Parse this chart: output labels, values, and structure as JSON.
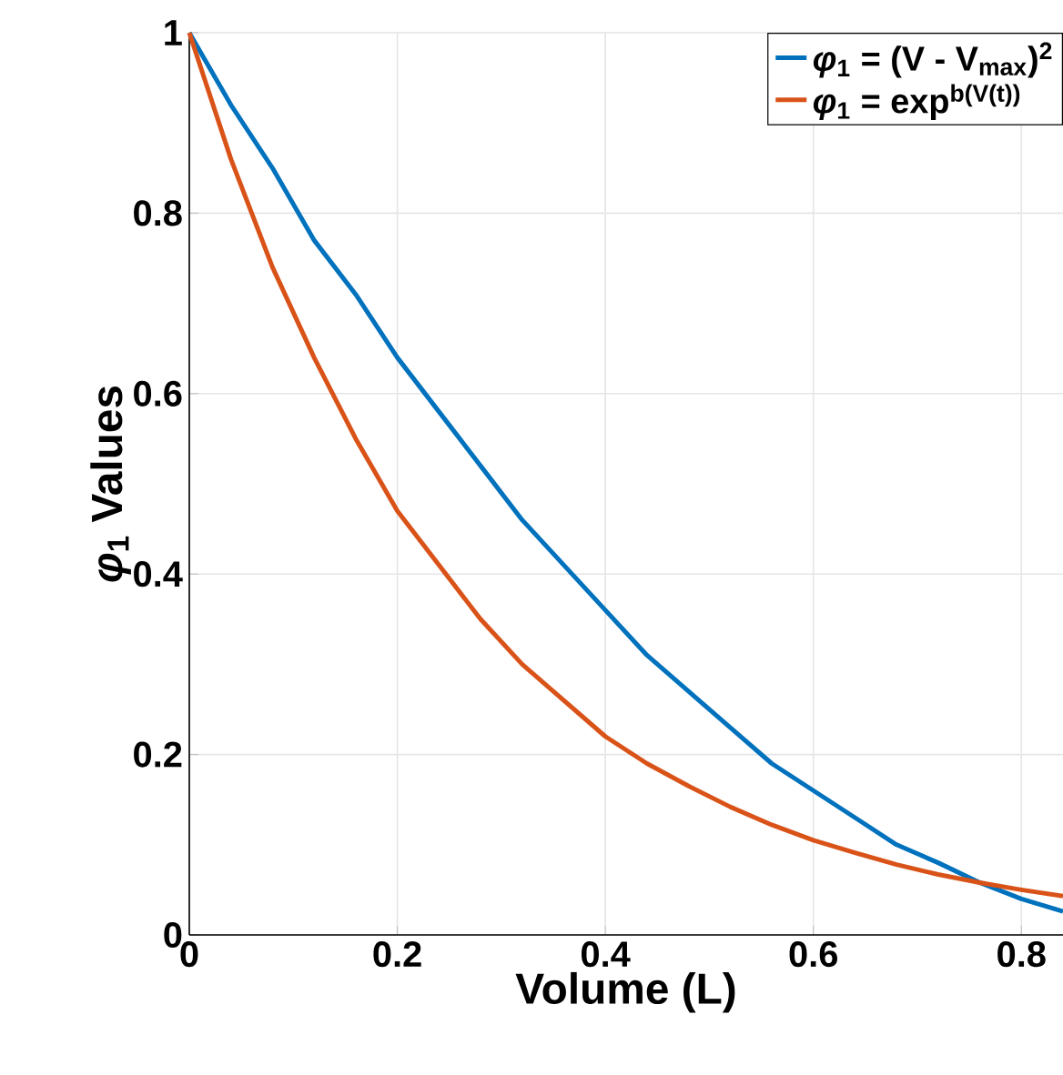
{
  "chart_data": {
    "type": "line",
    "xlabel": "Volume (L)",
    "ylabel": "*φ*$_{1}$ Values",
    "x": [
      0,
      0.04,
      0.08,
      0.12,
      0.16,
      0.2,
      0.24,
      0.28,
      0.32,
      0.36,
      0.4,
      0.44,
      0.48,
      0.52,
      0.56,
      0.6,
      0.64,
      0.68,
      0.72,
      0.76,
      0.8,
      0.84
    ],
    "series": [
      {
        "name": "*φ*$_{1}$ = (V - V$_{max}$)$^{2}$",
        "color": "#0072bd",
        "values": [
          1,
          0.92,
          0.85,
          0.77,
          0.71,
          0.64,
          0.58,
          0.52,
          0.46,
          0.41,
          0.36,
          0.31,
          0.27,
          0.23,
          0.19,
          0.16,
          0.13,
          0.1,
          0.08,
          0.058,
          0.04,
          0.026
        ]
      },
      {
        "name": "*φ*$_{1}$ = exp$^{b(V(t))}$",
        "color": "#d95319",
        "values": [
          1,
          0.86,
          0.74,
          0.64,
          0.55,
          0.47,
          0.41,
          0.35,
          0.3,
          0.26,
          0.22,
          0.19,
          0.165,
          0.142,
          0.122,
          0.105,
          0.091,
          0.078,
          0.067,
          0.058,
          0.05,
          0.043
        ]
      }
    ],
    "xlim": [
      0,
      0.84
    ],
    "ylim": [
      0,
      1
    ],
    "xticks": [
      0,
      0.2,
      0.4,
      0.6,
      0.8
    ],
    "yticks": [
      0,
      0.2,
      0.4,
      0.6,
      0.8,
      1
    ],
    "grid": true,
    "legend": "top right",
    "line_style": "solid",
    "marker": "none"
  }
}
